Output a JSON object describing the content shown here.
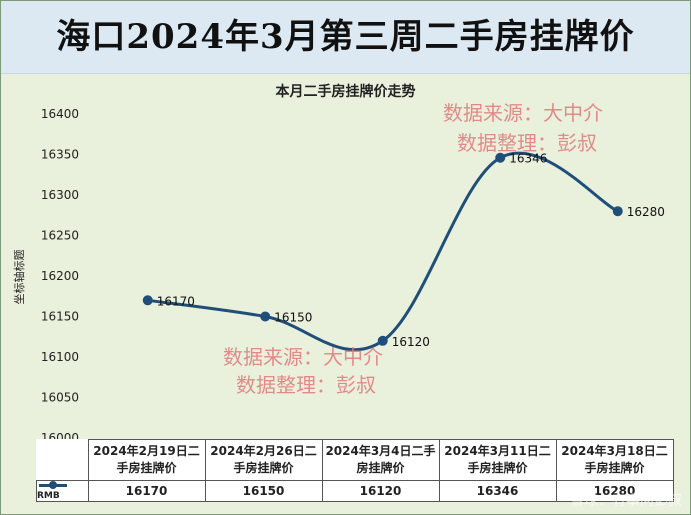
{
  "header": {
    "title": "海口2024年3月第三周二手房挂牌价"
  },
  "watermarks": [
    {
      "line1": "数据来源：大中介",
      "line2": "数据整理：彭叔"
    },
    {
      "line1": "数据来源：大中介",
      "line2": "数据整理：彭叔"
    }
  ],
  "footer_watermark": "雪球：有事问彭叔",
  "chart_data": {
    "type": "line",
    "title": "本月二手房挂牌价走势",
    "ylabel": "坐标轴标题",
    "xlabel": "",
    "ylim": [
      16000,
      16400
    ],
    "y_ticks": [
      "16400",
      "16350",
      "16300",
      "16250",
      "16200",
      "16150",
      "16100",
      "16050",
      "16000"
    ],
    "categories": [
      "2024年2月19日二手房挂牌价",
      "2024年2月26日二手房挂牌价",
      "2024年3月4日二手房挂牌价",
      "2024年3月11日二手房挂牌价",
      "2024年3月18日二手房挂牌价"
    ],
    "series": [
      {
        "name": "RMB",
        "values": [
          16170,
          16150,
          16120,
          16346,
          16280
        ],
        "color": "#1f4e79"
      }
    ],
    "data_labels": [
      "16170",
      "16150",
      "16120",
      "16346",
      "16280"
    ],
    "table_values": [
      "16170",
      "16150",
      "16120",
      "16346",
      "16280"
    ],
    "grid": false,
    "legend": "data-table"
  }
}
